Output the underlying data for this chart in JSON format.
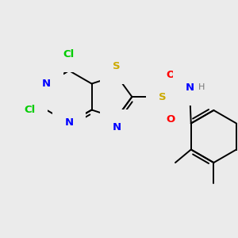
{
  "background_color": "#ebebeb",
  "colors": {
    "N": "#0000ff",
    "S_ring": "#ccaa00",
    "S_sulfonyl": "#ccaa00",
    "Cl": "#00cc00",
    "O": "#ff0000",
    "H": "#777777",
    "bond": "#000000"
  },
  "lw": 1.4,
  "fs": 9.5
}
